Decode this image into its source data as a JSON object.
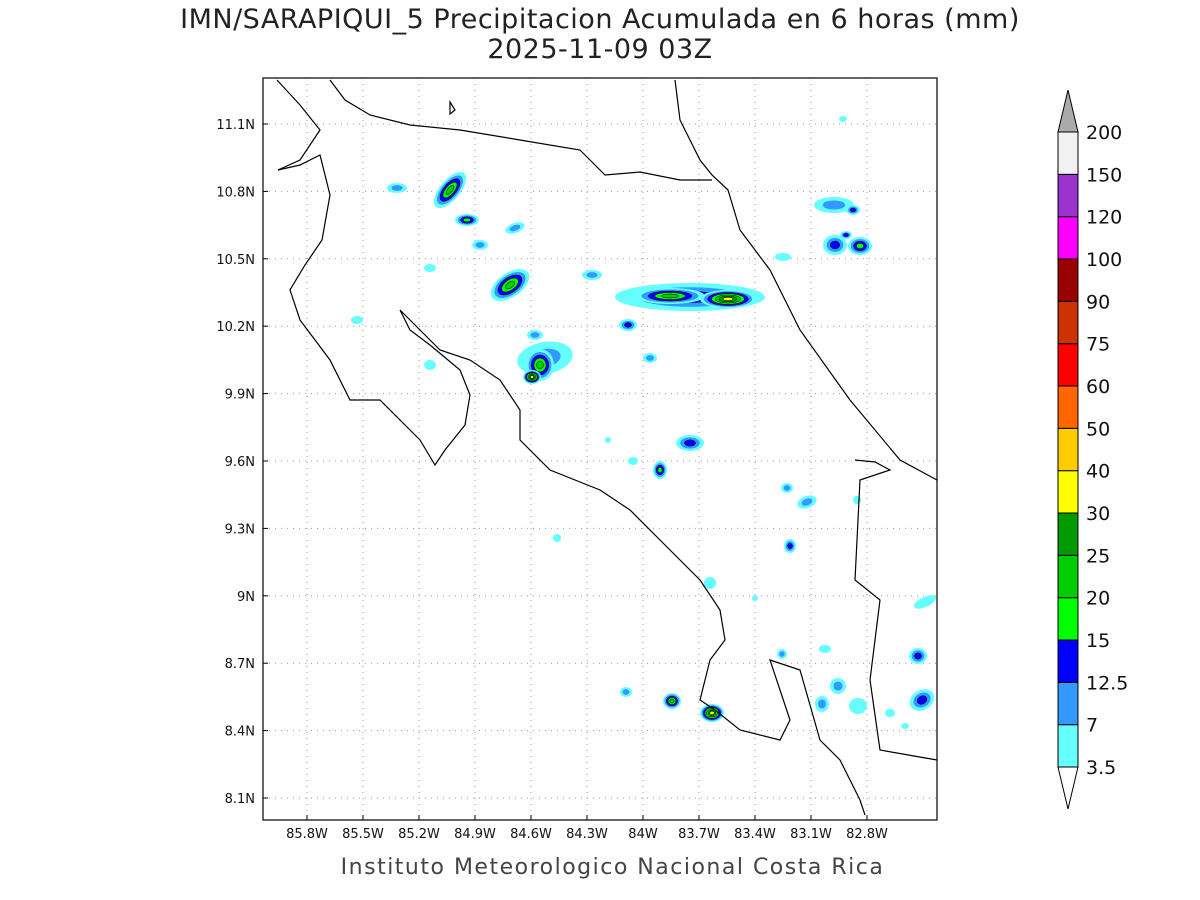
{
  "title": "IMN/SARAPIQUI_5 Precipitacion Acumulada en 6 horas (mm)",
  "subtitle": "2025-11-09 03Z",
  "footer": "Instituto Meteorologico Nacional Costa Rica",
  "axes": {
    "lon_ticks": [
      "85.8W",
      "85.5W",
      "85.2W",
      "84.9W",
      "84.6W",
      "84.3W",
      "84W",
      "83.7W",
      "83.4W",
      "83.1W",
      "82.8W"
    ],
    "lat_ticks": [
      "11.1N",
      "10.8N",
      "10.5N",
      "10.2N",
      "9.9N",
      "9.6N",
      "9.3N",
      "9N",
      "8.7N",
      "8.4N",
      "8.1N"
    ]
  },
  "colorbar": {
    "labels": [
      "3.5",
      "7",
      "12.5",
      "15",
      "20",
      "25",
      "30",
      "40",
      "50",
      "60",
      "75",
      "90",
      "100",
      "120",
      "150",
      "200"
    ],
    "colors": [
      "#66ffff",
      "#3399ff",
      "#0000ff",
      "#00ff00",
      "#00cc00",
      "#009900",
      "#ffff00",
      "#ffcc00",
      "#ff6600",
      "#ff0000",
      "#cc3300",
      "#990000",
      "#ff00ff",
      "#9933cc",
      "#f2f2f2"
    ],
    "over_color": "#aaaaaa",
    "under_color": "#ffffff"
  }
}
